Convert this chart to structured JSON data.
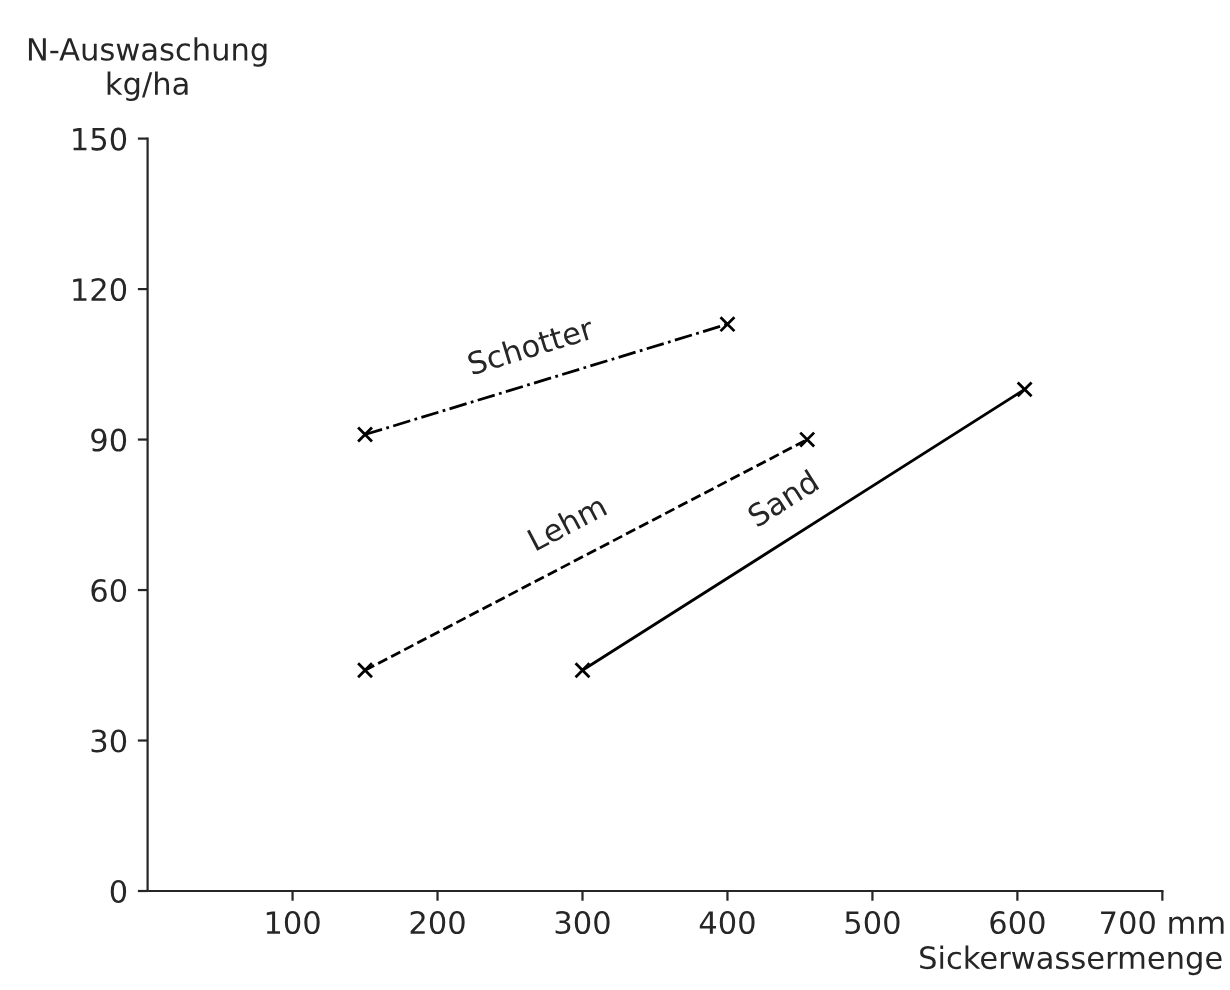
{
  "chart_data": {
    "type": "line",
    "xlabel": "Sickerwassermenge",
    "ylabel": "N-Auswaschung\nkg/ha",
    "series": [
      {
        "name": "Schotter",
        "color": "#000000",
        "x": [
          150,
          400
        ],
        "values": [
          91,
          113
        ],
        "line_style": "dashdot"
      },
      {
        "name": "Lehm",
        "color": "#000000",
        "x": [
          150,
          455
        ],
        "values": [
          44,
          90
        ],
        "line_style": "dashed"
      },
      {
        "name": "Sand",
        "color": "#000000",
        "x": [
          300,
          605
        ],
        "values": [
          44,
          100
        ],
        "line_style": "solid"
      }
    ],
    "xlim": [
      0,
      700
    ],
    "xticks": [
      100,
      200,
      300,
      400,
      500,
      600,
      {
        "value": 700,
        "label": "700 mm"
      }
    ],
    "ylim": [
      0,
      150
    ],
    "yticks": [
      0,
      30,
      60,
      90,
      120,
      150
    ],
    "marker": "cross",
    "grid": false,
    "legend": false
  }
}
